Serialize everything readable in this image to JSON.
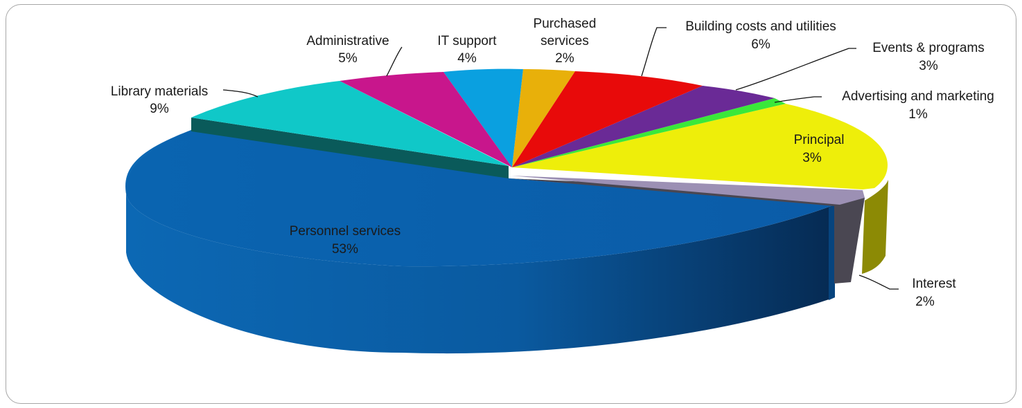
{
  "chart_data": {
    "type": "pie",
    "style": "3d-exploded",
    "title": "",
    "slices": [
      {
        "name": "Personnel services",
        "value": 53,
        "label": "53%",
        "color": "#0a5ea8"
      },
      {
        "name": "Library materials",
        "value": 9,
        "label": "9%",
        "color": "#10c8c8"
      },
      {
        "name": "Administrative",
        "value": 5,
        "label": "5%",
        "color": "#c8168c"
      },
      {
        "name": "IT support",
        "value": 4,
        "label": "4%",
        "color": "#0aa0e0"
      },
      {
        "name": "Purchased services",
        "name_lines": [
          "Purchased",
          "services"
        ],
        "value": 2,
        "label": "2%",
        "color": "#e8b00a"
      },
      {
        "name": "Building costs and utilities",
        "value": 6,
        "label": "6%",
        "color": "#e80a0a"
      },
      {
        "name": "Events & programs",
        "value": 3,
        "label": "3%",
        "color": "#6a2a96"
      },
      {
        "name": "Advertising and marketing",
        "value": 1,
        "label": "1%",
        "color": "#3ae83a"
      },
      {
        "name": "Principal",
        "value": 3,
        "label": "3%",
        "color": "#eeee0a"
      },
      {
        "name": "Interest",
        "value": 2,
        "label": "2%",
        "color": "#9c90b4"
      }
    ],
    "legend": "none",
    "data_labels": "name-and-percent"
  }
}
